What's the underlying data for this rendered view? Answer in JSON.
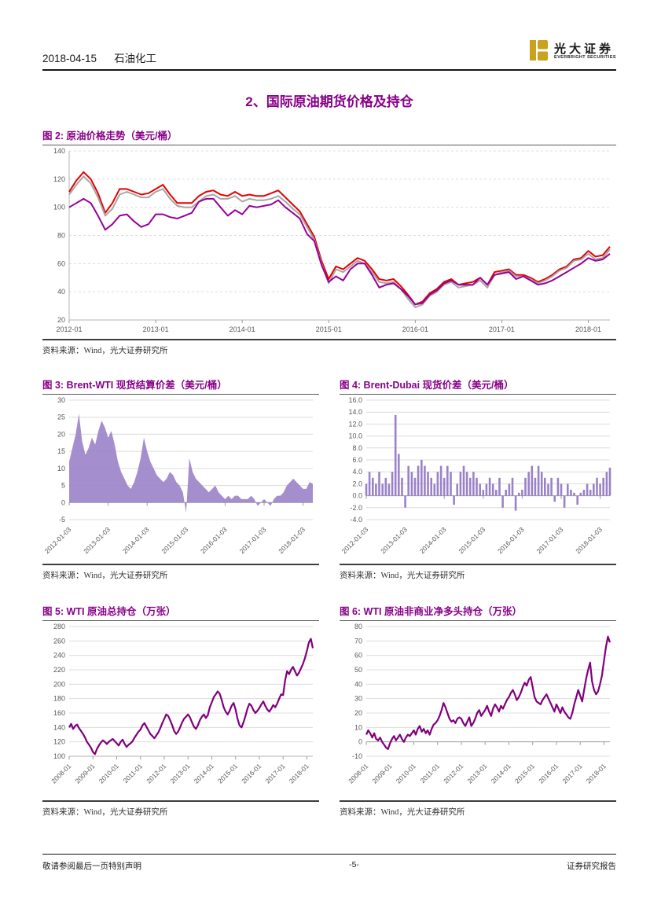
{
  "header": {
    "date": "2018-04-15",
    "industry": "石油化工",
    "brand_cn": "光大证券",
    "brand_en": "EVERBRIGHT SECURITIES",
    "brand_color": "#C9A21E"
  },
  "section_title": "2、国际原油期货价格及持仓",
  "source_note": "资料来源：Wind，光大证券研究所",
  "footer": {
    "left": "敬请参阅最后一页特别声明",
    "center": "-5-",
    "right": "证券研究报告"
  },
  "accent_colors": {
    "title_purple": "#880088",
    "line_red": "#e60000",
    "line_gray": "#a6a6a6",
    "line_purple": "#970098",
    "line_dark_purple": "#80007d",
    "area_purple": "#9b82c8"
  },
  "chart_data": [
    {
      "id": "fig2",
      "type": "line",
      "title": "图 2: 原油价格走势（美元/桶）",
      "ylim": [
        20,
        140
      ],
      "ytick_step": 20,
      "y_decimals": 0,
      "grid_dash": true,
      "axis_left": true,
      "axis_bottom": true,
      "rotate_x": false,
      "tick_interval": 12,
      "x_tick_labels": [
        "2012-01",
        "2013-01",
        "2014-01",
        "2015-01",
        "2016-01",
        "2017-01",
        "2018-01"
      ],
      "series": [
        {
          "color": "#e60000",
          "width": 2,
          "values": [
            111,
            119,
            125,
            120,
            110,
            96,
            103,
            113,
            113,
            111,
            109,
            110,
            113,
            116,
            109,
            103,
            103,
            103,
            108,
            111,
            112,
            109,
            108,
            111,
            108,
            109,
            108,
            108,
            110,
            112,
            107,
            102,
            97,
            88,
            79,
            62,
            49,
            58,
            56,
            60,
            64,
            62,
            56,
            49,
            48,
            49,
            44,
            38,
            31,
            33,
            39,
            42,
            47,
            49,
            45,
            46,
            47,
            50,
            45,
            54,
            55,
            56,
            52,
            52,
            50,
            47,
            49,
            52,
            56,
            58,
            63,
            64,
            69,
            65,
            66,
            72
          ]
        },
        {
          "color": "#a6a6a6",
          "width": 2,
          "values": [
            109,
            116,
            122,
            117,
            107,
            94,
            99,
            109,
            111,
            109,
            107,
            107,
            111,
            113,
            106,
            101,
            100,
            100,
            104,
            108,
            109,
            106,
            106,
            108,
            104,
            106,
            105,
            105,
            106,
            108,
            104,
            99,
            95,
            86,
            77,
            60,
            46,
            56,
            54,
            58,
            62,
            60,
            54,
            47,
            46,
            47,
            42,
            35,
            29,
            31,
            37,
            40,
            45,
            47,
            43,
            44,
            45,
            48,
            43,
            52,
            54,
            55,
            51,
            51,
            49,
            46,
            48,
            51,
            55,
            57,
            62,
            63,
            67,
            63,
            64,
            70
          ]
        },
        {
          "color": "#970098",
          "width": 2,
          "values": [
            100,
            103,
            106,
            103,
            94,
            84,
            88,
            94,
            95,
            90,
            86,
            88,
            95,
            95,
            93,
            92,
            94,
            96,
            104,
            106,
            106,
            100,
            94,
            98,
            95,
            101,
            100,
            101,
            102,
            105,
            100,
            96,
            92,
            81,
            76,
            59,
            47,
            51,
            48,
            56,
            60,
            60,
            52,
            43,
            45,
            46,
            42,
            37,
            31,
            32,
            38,
            41,
            46,
            48,
            45,
            45,
            45,
            50,
            45,
            52,
            53,
            54,
            49,
            51,
            48,
            45,
            46,
            48,
            51,
            54,
            57,
            60,
            64,
            62,
            63,
            67
          ]
        }
      ]
    },
    {
      "id": "fig3",
      "type": "area",
      "title": "图 3: Brent-WTI 现货结算价差（美元/桶）",
      "ylim": [
        -5,
        30
      ],
      "ytick_step": 5,
      "y_decimals": 0,
      "grid_dash": false,
      "zero_dark": true,
      "rotate_x": true,
      "tick_interval": 12,
      "x_tick_labels": [
        "2012-01-03",
        "2013-01-03",
        "2014-01-03",
        "2015-01-03",
        "2016-01-03",
        "2017-01-03",
        "2018-01-03"
      ],
      "series": [
        {
          "color": "#9b82c8",
          "values": [
            12,
            16,
            20,
            26,
            18,
            14,
            16,
            19,
            17,
            21,
            24,
            22,
            19,
            21,
            17,
            12,
            9,
            7,
            5,
            4,
            6,
            9,
            13,
            19,
            15,
            12,
            10,
            8,
            7,
            6,
            7,
            9,
            8,
            6,
            5,
            3,
            -3,
            13,
            9,
            7,
            6,
            5,
            4,
            3,
            4,
            5,
            3,
            2,
            1,
            2,
            1,
            2,
            2,
            1,
            1,
            1,
            2,
            1,
            -1,
            0,
            1,
            0,
            -1,
            1,
            2,
            2,
            3,
            5,
            6,
            7,
            6,
            5,
            4,
            4,
            6,
            5.5
          ]
        }
      ]
    },
    {
      "id": "fig4",
      "type": "bar",
      "title": "图 4: Brent-Dubai 现货价差（美元/桶）",
      "ylim": [
        -4,
        16
      ],
      "ytick_step": 2,
      "y_decimals": 1,
      "grid_dash": false,
      "zero_dark": true,
      "rotate_x": true,
      "tick_interval": 12,
      "x_tick_labels": [
        "2012-01-03",
        "2013-01-03",
        "2014-01-03",
        "2015-01-03",
        "2016-01-03",
        "2017-01-03",
        "2018-01-03"
      ],
      "series": [
        {
          "color": "#9b82c8",
          "values": [
            2,
            4,
            3,
            2,
            4,
            2,
            3,
            2,
            4,
            13.5,
            7,
            3,
            -2,
            5,
            4,
            3,
            5,
            6,
            5,
            4,
            3,
            2,
            4,
            5,
            3,
            5,
            4,
            -1.5,
            2,
            4,
            5,
            4,
            3,
            4,
            3,
            2,
            1,
            2,
            3,
            2,
            1,
            3,
            -2,
            1,
            2,
            3,
            -2.5,
            0.5,
            1,
            3,
            4,
            5,
            3,
            5,
            4,
            3,
            2,
            3,
            -1,
            3,
            2,
            -2,
            2,
            1,
            0.5,
            -1.5,
            0.5,
            1,
            2,
            1,
            2,
            3,
            2,
            3,
            4,
            4.7
          ]
        }
      ]
    },
    {
      "id": "fig5",
      "type": "line",
      "title": "图 5: WTI 原油总持仓（万张）",
      "ylim": [
        100,
        280
      ],
      "ytick_step": 20,
      "y_decimals": 0,
      "grid_dash": false,
      "axis_bottom": true,
      "rotate_x": true,
      "tick_interval": 12,
      "x_tick_labels": [
        "2008-01",
        "2009-01",
        "2010-01",
        "2011-01",
        "2012-01",
        "2013-01",
        "2014-01",
        "2015-01",
        "2016-01",
        "2017-01",
        "2018-01"
      ],
      "series": [
        {
          "color": "#80007d",
          "width": 2.2,
          "values": [
            140,
            145,
            138,
            142,
            144,
            139,
            135,
            131,
            126,
            120,
            116,
            112,
            106,
            103,
            110,
            115,
            119,
            122,
            120,
            117,
            120,
            122,
            124,
            121,
            118,
            115,
            120,
            123,
            117,
            113,
            116,
            118,
            121,
            126,
            130,
            134,
            137,
            143,
            146,
            141,
            136,
            131,
            128,
            125,
            129,
            133,
            139,
            146,
            152,
            158,
            156,
            150,
            143,
            135,
            131,
            134,
            140,
            147,
            152,
            155,
            158,
            154,
            147,
            141,
            138,
            143,
            150,
            155,
            158,
            153,
            157,
            168,
            175,
            182,
            186,
            190,
            187,
            178,
            168,
            162,
            158,
            163,
            170,
            174,
            165,
            152,
            143,
            140,
            147,
            156,
            166,
            173,
            170,
            164,
            160,
            163,
            167,
            172,
            176,
            170,
            165,
            162,
            166,
            171,
            168,
            173,
            180,
            186,
            185,
            205,
            218,
            214,
            220,
            224,
            218,
            212,
            216,
            222,
            228,
            236,
            246,
            258,
            263,
            250
          ]
        }
      ]
    },
    {
      "id": "fig6",
      "type": "line",
      "title": "图 6: WTI 原油非商业净多头持仓（万张）",
      "ylim": [
        -10,
        80
      ],
      "ytick_step": 10,
      "y_decimals": 0,
      "grid_dash": false,
      "zero_dark": true,
      "rotate_x": true,
      "tick_interval": 12,
      "x_tick_labels": [
        "2008-01",
        "2009-01",
        "2010-01",
        "2011-01",
        "2012-01",
        "2013-01",
        "2014-01",
        "2015-01",
        "2016-01",
        "2017-01",
        "2018-01"
      ],
      "series": [
        {
          "color": "#80007d",
          "width": 2.2,
          "values": [
            5,
            8,
            6,
            3,
            6,
            2,
            1,
            3,
            0,
            -2,
            -4,
            -5,
            -1,
            2,
            4,
            1,
            3,
            5,
            2,
            0,
            3,
            5,
            4,
            6,
            8,
            5,
            9,
            11,
            7,
            9,
            6,
            8,
            5,
            9,
            12,
            13,
            15,
            18,
            22,
            27,
            24,
            20,
            16,
            14,
            15,
            13,
            16,
            17,
            16,
            13,
            11,
            14,
            17,
            11,
            13,
            16,
            20,
            22,
            18,
            20,
            22,
            25,
            21,
            18,
            23,
            26,
            24,
            21,
            25,
            23,
            26,
            29,
            31,
            34,
            36,
            33,
            29,
            31,
            34,
            38,
            41,
            39,
            43,
            45,
            38,
            31,
            28,
            27,
            26,
            29,
            31,
            33,
            30,
            27,
            24,
            21,
            26,
            23,
            20,
            24,
            21,
            19,
            17,
            16,
            20,
            26,
            31,
            36,
            32,
            28,
            36,
            44,
            50,
            55,
            42,
            36,
            33,
            35,
            40,
            46,
            56,
            66,
            73,
            69
          ]
        }
      ]
    }
  ]
}
